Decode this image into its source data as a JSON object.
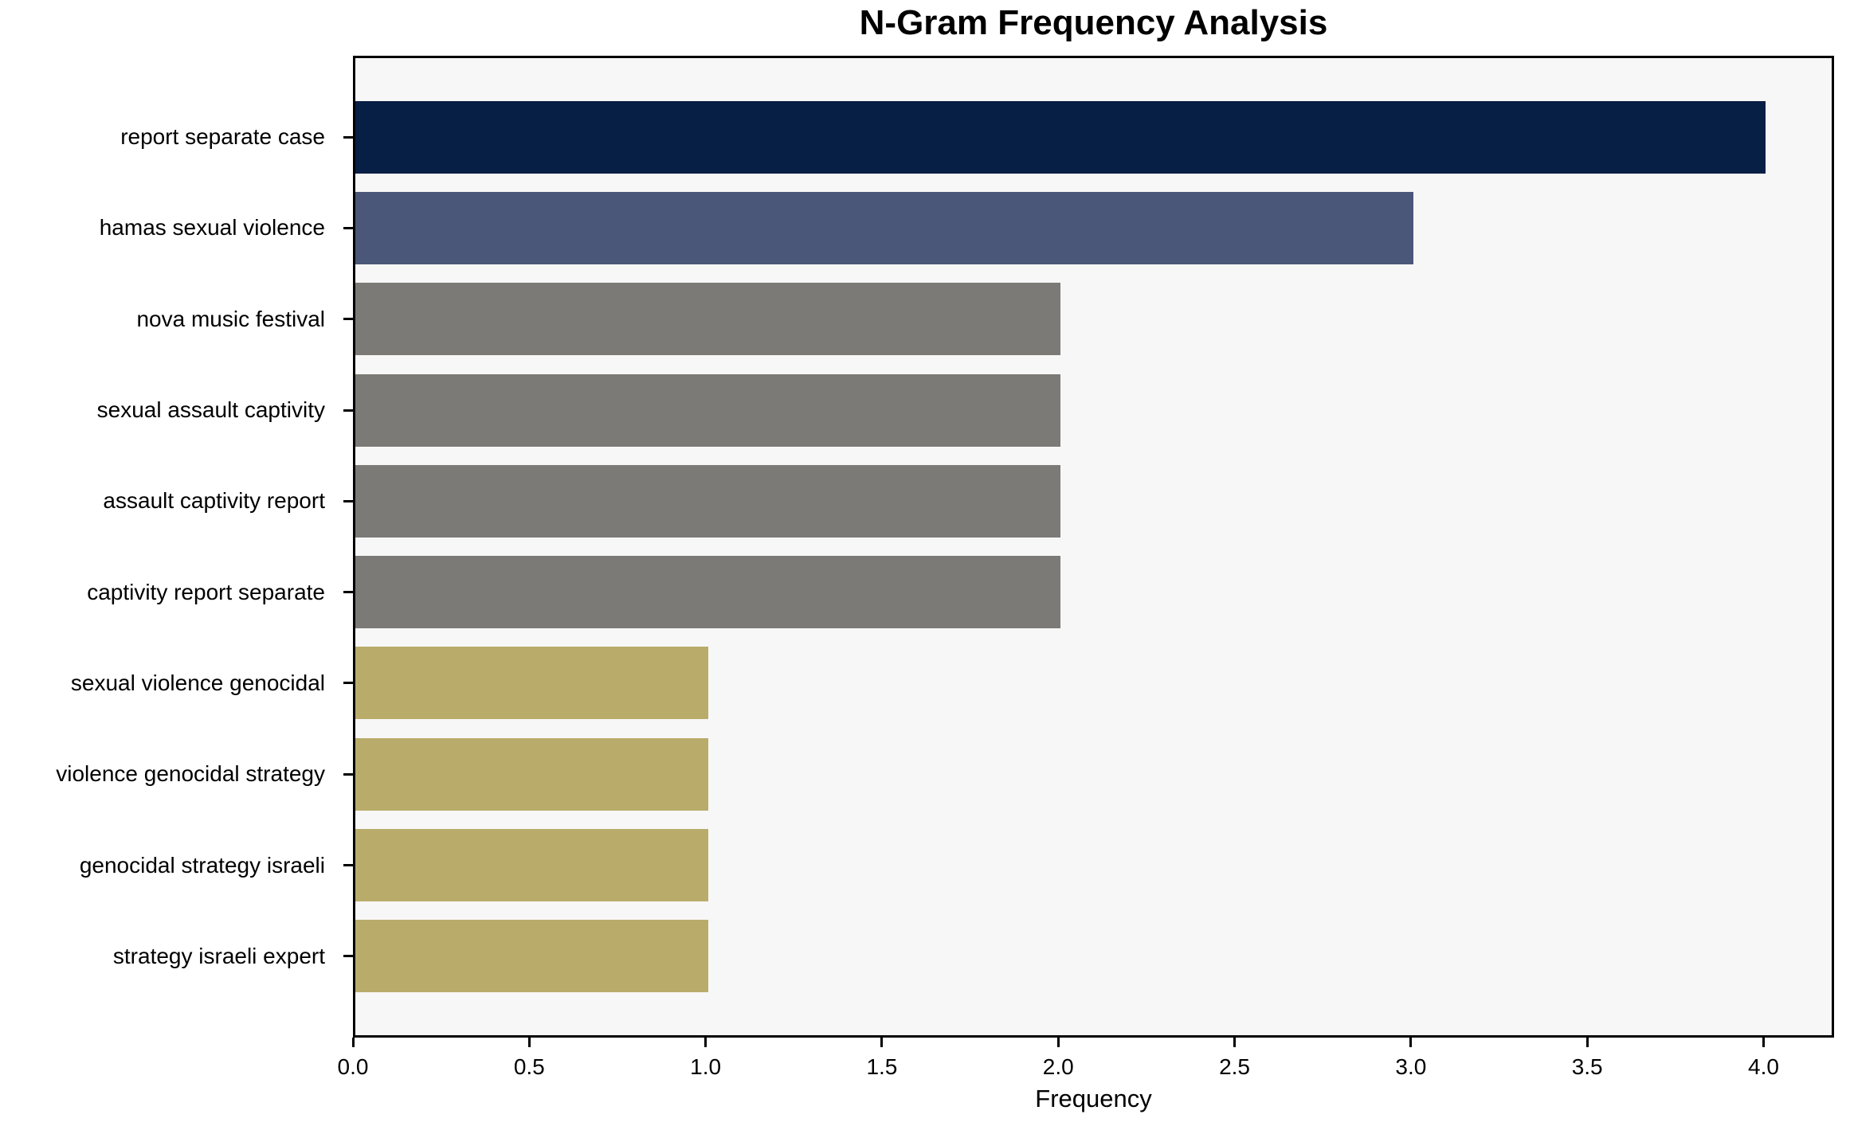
{
  "chart_data": {
    "type": "bar",
    "orientation": "horizontal",
    "title": "N-Gram Frequency Analysis",
    "xlabel": "Frequency",
    "ylabel": "",
    "categories": [
      "report separate case",
      "hamas sexual violence",
      "nova music festival",
      "sexual assault captivity",
      "assault captivity report",
      "captivity report separate",
      "sexual violence genocidal",
      "violence genocidal strategy",
      "genocidal strategy israeli",
      "strategy israeli expert"
    ],
    "values": [
      4,
      3,
      2,
      2,
      2,
      2,
      1,
      1,
      1,
      1
    ],
    "bar_colors": [
      "#071f45",
      "#4a5778",
      "#7b7a76",
      "#7b7a76",
      "#7b7a76",
      "#7b7a76",
      "#b9ac6b",
      "#b9ac6b",
      "#b9ac6b",
      "#b9ac6b"
    ],
    "xlim": [
      0,
      4.2
    ],
    "xticks": [
      0.0,
      0.5,
      1.0,
      1.5,
      2.0,
      2.5,
      3.0,
      3.5,
      4.0
    ],
    "xtick_labels": [
      "0.0",
      "0.5",
      "1.0",
      "1.5",
      "2.0",
      "2.5",
      "3.0",
      "3.5",
      "4.0"
    ],
    "grid": "off",
    "legend": "none",
    "plot_background": "#f8f7f7",
    "figure_background": "#ffffff",
    "spine_color": "#000000"
  }
}
